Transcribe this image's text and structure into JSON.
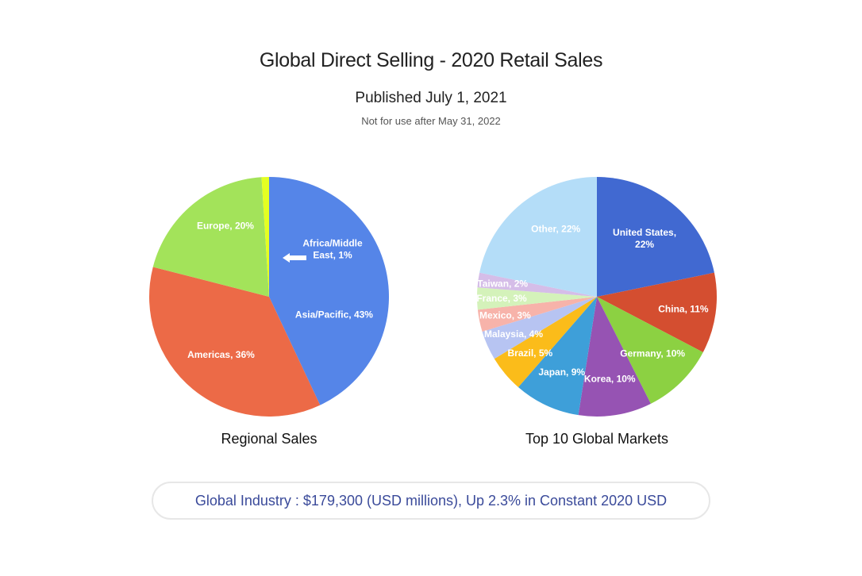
{
  "header": {
    "title": "Global Direct Selling - 2020 Retail Sales",
    "subtitle": "Published July 1, 2021",
    "note": "Not for use after May 31, 2022"
  },
  "chart_data": [
    {
      "type": "pie",
      "title": "Regional Sales",
      "slices": [
        {
          "label": "Asia/Pacific, 43%",
          "value": 43,
          "color": "#5585e8"
        },
        {
          "label": "Americas, 36%",
          "value": 36,
          "color": "#ec6a47"
        },
        {
          "label": "Europe, 20%",
          "value": 20,
          "color": "#a3e35a"
        },
        {
          "label": "Africa/Middle East, 1%",
          "value": 1,
          "color": "#e4ff22"
        }
      ],
      "annotation_lines": [
        "Africa/Middle",
        "East, 1%"
      ]
    },
    {
      "type": "pie",
      "title": "Top 10 Global Markets",
      "slices": [
        {
          "label": "United States, 22%",
          "value": 22,
          "color": "#4169d1",
          "lines": [
            "United States,",
            "22%"
          ]
        },
        {
          "label": "China, 11%",
          "value": 11,
          "color": "#d44e30"
        },
        {
          "label": "Germany, 10%",
          "value": 10,
          "color": "#8cd142"
        },
        {
          "label": "Korea, 10%",
          "value": 10,
          "color": "#9653b3"
        },
        {
          "label": "Japan, 9%",
          "value": 9,
          "color": "#3e9fd9"
        },
        {
          "label": "Brazil, 5%",
          "value": 5,
          "color": "#fbbc1a"
        },
        {
          "label": "Malaysia, 4%",
          "value": 4,
          "color": "#b7c4f2"
        },
        {
          "label": "Mexico, 3%",
          "value": 3,
          "color": "#f7b3aa"
        },
        {
          "label": "France, 3%",
          "value": 3,
          "color": "#d4f2ba"
        },
        {
          "label": "Taiwan, 2%",
          "value": 2,
          "color": "#d5bde8"
        },
        {
          "label": "Other, 22%",
          "value": 22,
          "color": "#b4ddf8"
        }
      ]
    }
  ],
  "footer": {
    "text": "Global Industry : $179,300 (USD millions), Up 2.3% in Constant 2020 USD"
  }
}
